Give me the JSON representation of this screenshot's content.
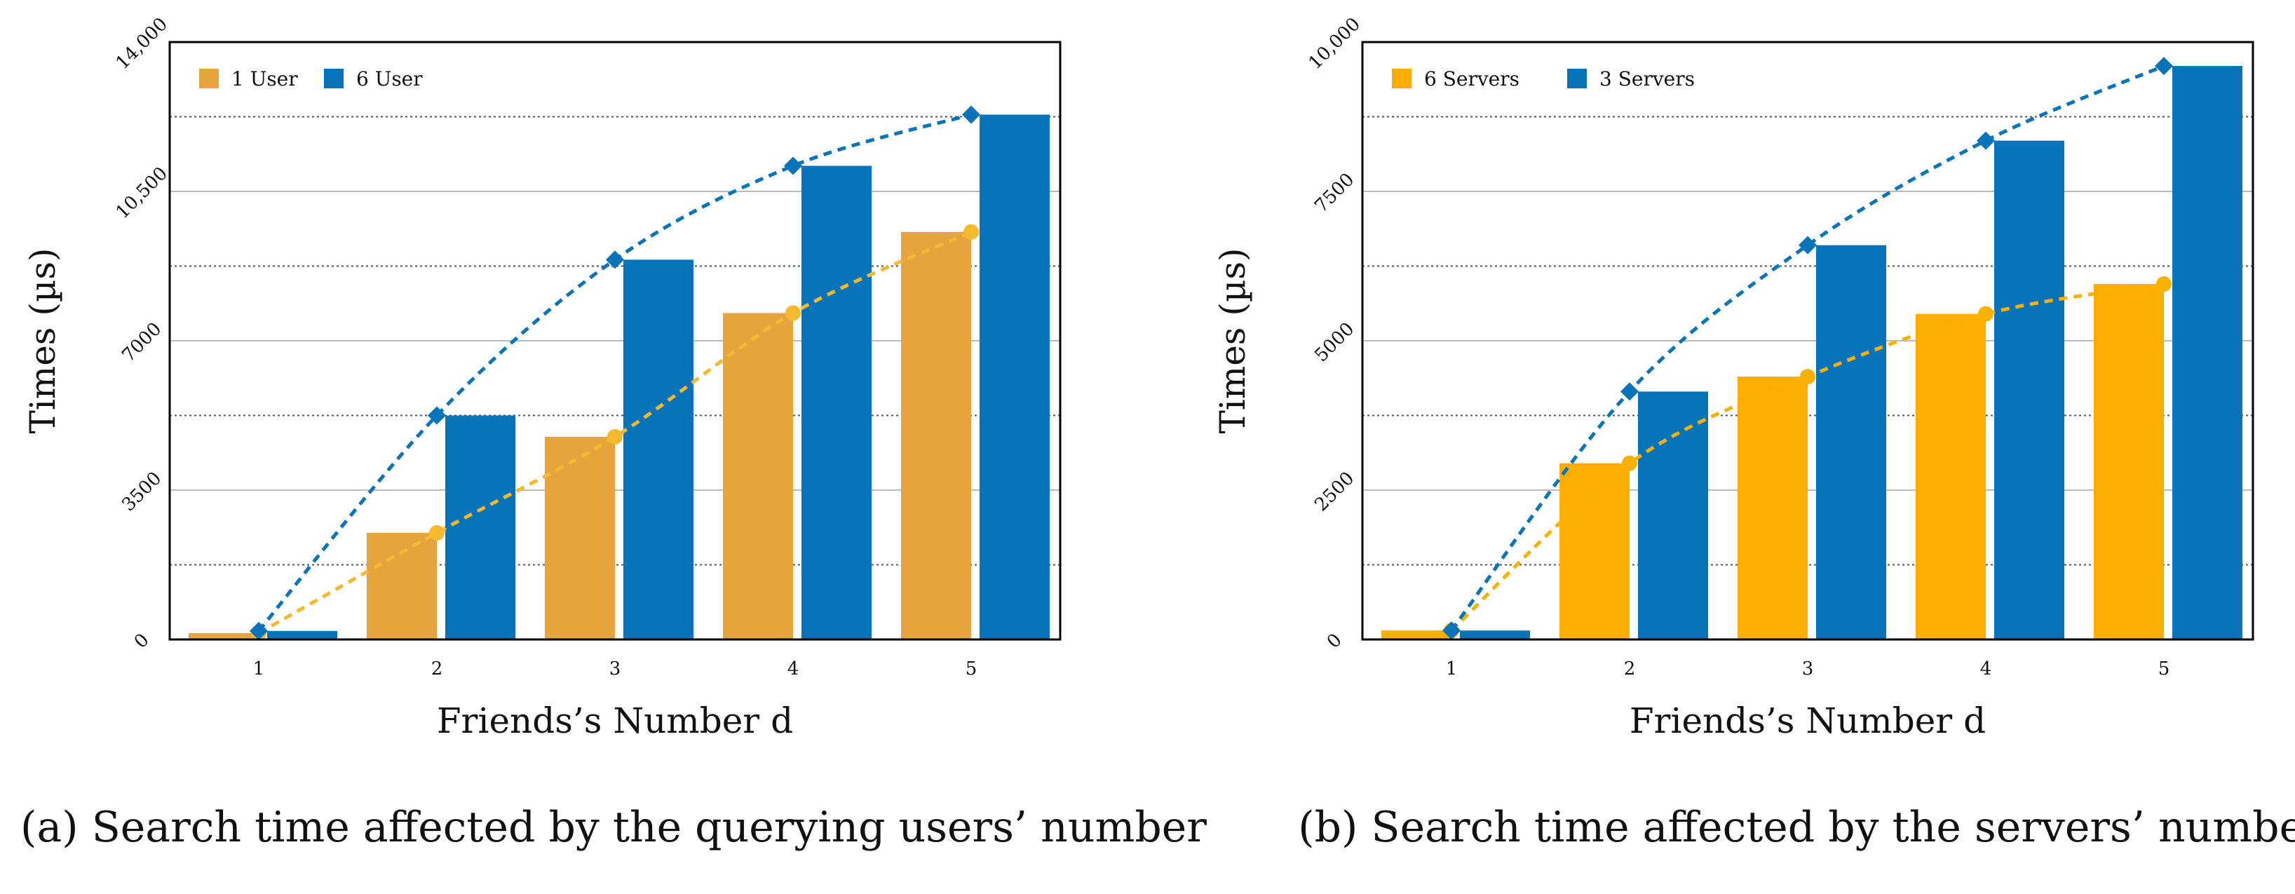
{
  "chart_data": [
    {
      "type": "bar",
      "title": "",
      "caption": "(a) Search time affected by the querying users’ number",
      "xlabel": "Friends’s Number d",
      "ylabel": "Times (µs)",
      "categories": [
        "1",
        "2",
        "3",
        "4",
        "5"
      ],
      "ylim": [
        0,
        14000
      ],
      "yticks": [
        0,
        3500,
        7000,
        10500,
        14000
      ],
      "ytick_labels": [
        "0",
        "3500",
        "7000",
        "10,500",
        "14,000"
      ],
      "grid": true,
      "legend_position": "top-left",
      "series": [
        {
          "name": "1 User",
          "color": "#E8A43C",
          "line_color": "#F5B82E",
          "marker": "circle",
          "values": [
            150,
            2500,
            4750,
            7650,
            9550
          ]
        },
        {
          "name": "6 User",
          "color": "#0773B8",
          "line_color": "#0773B8",
          "marker": "diamond",
          "values": [
            200,
            5250,
            8900,
            11100,
            12300
          ]
        }
      ]
    },
    {
      "type": "bar",
      "title": "",
      "caption": "(b) Search time affected by the servers’ number",
      "xlabel": "Friends’s Number d",
      "ylabel": "Times (µs)",
      "categories": [
        "1",
        "2",
        "3",
        "4",
        "5"
      ],
      "ylim": [
        0,
        10000
      ],
      "yticks": [
        0,
        2500,
        5000,
        7500,
        10000
      ],
      "ytick_labels": [
        "0",
        "2500",
        "5000",
        "7500",
        "10,000"
      ],
      "grid": true,
      "legend_position": "top-left",
      "series": [
        {
          "name": "6 Servers",
          "color": "#FCAE00",
          "line_color": "#F7B200",
          "marker": "circle",
          "values": [
            150,
            2950,
            4400,
            5450,
            5950
          ]
        },
        {
          "name": "3 Servers",
          "color": "#0773B8",
          "line_color": "#0773B8",
          "marker": "diamond",
          "values": [
            150,
            4150,
            6600,
            8350,
            9600
          ]
        }
      ]
    }
  ]
}
